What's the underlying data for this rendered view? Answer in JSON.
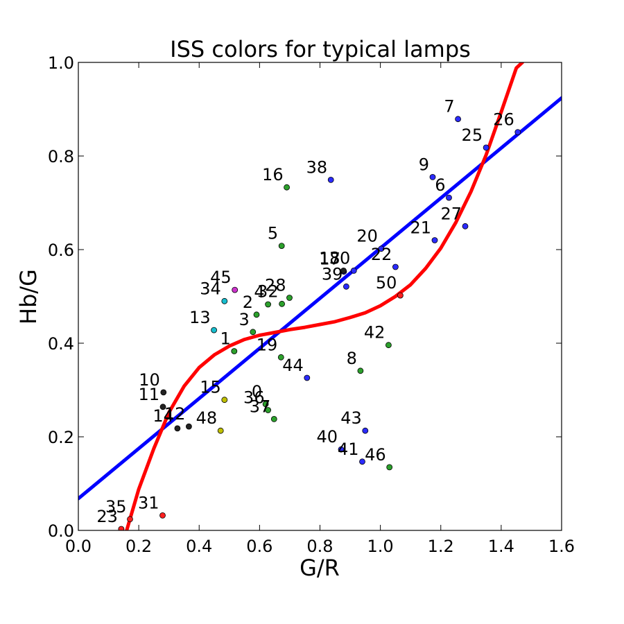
{
  "chart_data": {
    "type": "scatter",
    "title": "ISS colors for typical lamps",
    "xlabel": "G/R",
    "ylabel": "Hb/G",
    "xlim": [
      0.0,
      1.6
    ],
    "ylim": [
      0.0,
      1.0
    ],
    "x_ticks": [
      "0.0",
      "0.2",
      "0.4",
      "0.6",
      "0.8",
      "1.0",
      "1.2",
      "1.4",
      "1.6"
    ],
    "y_ticks": [
      "0.0",
      "0.2",
      "0.4",
      "0.6",
      "0.8",
      "1.0"
    ],
    "grid": false,
    "legend": "none",
    "points": [
      {
        "label": "0",
        "x": 0.62,
        "y": 0.27,
        "color": "#2ca02c"
      },
      {
        "label": "1",
        "x": 0.516,
        "y": 0.383,
        "color": "#2ca02c"
      },
      {
        "label": "2",
        "x": 0.59,
        "y": 0.461,
        "color": "#2ca02c"
      },
      {
        "label": "3",
        "x": 0.578,
        "y": 0.424,
        "color": "#2ca02c"
      },
      {
        "label": "4",
        "x": 0.628,
        "y": 0.483,
        "color": "#2ca02c"
      },
      {
        "label": "5",
        "x": 0.673,
        "y": 0.608,
        "color": "#2ca02c"
      },
      {
        "label": "6",
        "x": 1.227,
        "y": 0.711,
        "color": "#2b2bff"
      },
      {
        "label": "7",
        "x": 1.257,
        "y": 0.879,
        "color": "#2b2bff"
      },
      {
        "label": "8",
        "x": 0.934,
        "y": 0.341,
        "color": "#2ca02c"
      },
      {
        "label": "9",
        "x": 1.173,
        "y": 0.755,
        "color": "#2b2bff"
      },
      {
        "label": "10",
        "x": 0.282,
        "y": 0.295,
        "color": "#222222"
      },
      {
        "label": "11",
        "x": 0.28,
        "y": 0.264,
        "color": "#222222"
      },
      {
        "label": "12",
        "x": 0.366,
        "y": 0.222,
        "color": "#222222"
      },
      {
        "label": "13",
        "x": 0.449,
        "y": 0.428,
        "color": "#17becf"
      },
      {
        "label": "14",
        "x": 0.328,
        "y": 0.218,
        "color": "#222222"
      },
      {
        "label": "15",
        "x": 0.484,
        "y": 0.279,
        "color": "#bfbf00"
      },
      {
        "label": "16",
        "x": 0.69,
        "y": 0.733,
        "color": "#2ca02c"
      },
      {
        "label": "17",
        "x": 0.879,
        "y": 0.553,
        "color": "#2b2bff"
      },
      {
        "label": "18",
        "x": 0.878,
        "y": 0.555,
        "color": "#222222"
      },
      {
        "label": "19",
        "x": 0.671,
        "y": 0.37,
        "color": "#2ca02c"
      },
      {
        "label": "20",
        "x": 1.003,
        "y": 0.602,
        "color": "#2b2bff"
      },
      {
        "label": "21",
        "x": 1.18,
        "y": 0.62,
        "color": "#2b2bff"
      },
      {
        "label": "22",
        "x": 1.05,
        "y": 0.563,
        "color": "#2b2bff"
      },
      {
        "label": "23",
        "x": 0.142,
        "y": 0.003,
        "color": "#ff2020"
      },
      {
        "label": "25",
        "x": 1.35,
        "y": 0.818,
        "color": "#2b2bff"
      },
      {
        "label": "26",
        "x": 1.455,
        "y": 0.851,
        "color": "#2b2bff"
      },
      {
        "label": "27",
        "x": 1.281,
        "y": 0.65,
        "color": "#2b2bff"
      },
      {
        "label": "28",
        "x": 0.699,
        "y": 0.497,
        "color": "#2ca02c"
      },
      {
        "label": "30",
        "x": 0.912,
        "y": 0.555,
        "color": "#2b2bff"
      },
      {
        "label": "31",
        "x": 0.279,
        "y": 0.032,
        "color": "#ff2020"
      },
      {
        "label": "32",
        "x": 0.674,
        "y": 0.484,
        "color": "#2ca02c"
      },
      {
        "label": "34",
        "x": 0.484,
        "y": 0.49,
        "color": "#17becf"
      },
      {
        "label": "35",
        "x": 0.171,
        "y": 0.024,
        "color": "#ff2020"
      },
      {
        "label": "36",
        "x": 0.628,
        "y": 0.257,
        "color": "#2ca02c"
      },
      {
        "label": "37",
        "x": 0.648,
        "y": 0.238,
        "color": "#2ca02c"
      },
      {
        "label": "38",
        "x": 0.836,
        "y": 0.749,
        "color": "#2b2bff"
      },
      {
        "label": "39",
        "x": 0.887,
        "y": 0.521,
        "color": "#2b2bff"
      },
      {
        "label": "40",
        "x": 0.87,
        "y": 0.173,
        "color": "#2b2bff"
      },
      {
        "label": "41",
        "x": 0.94,
        "y": 0.147,
        "color": "#2b2bff"
      },
      {
        "label": "42",
        "x": 1.027,
        "y": 0.396,
        "color": "#2ca02c"
      },
      {
        "label": "43",
        "x": 0.95,
        "y": 0.213,
        "color": "#2b2bff"
      },
      {
        "label": "44",
        "x": 0.757,
        "y": 0.326,
        "color": "#2b2bff"
      },
      {
        "label": "45",
        "x": 0.518,
        "y": 0.514,
        "color": "#cc33cc"
      },
      {
        "label": "46",
        "x": 1.03,
        "y": 0.135,
        "color": "#2ca02c"
      },
      {
        "label": "48",
        "x": 0.471,
        "y": 0.213,
        "color": "#bfbf00"
      },
      {
        "label": "50",
        "x": 1.066,
        "y": 0.502,
        "color": "#ff2020"
      }
    ],
    "fit_lines": [
      {
        "type": "linear",
        "color": "#0000ff",
        "x": [
          0.0,
          1.6
        ],
        "y": [
          0.068,
          0.924
        ]
      },
      {
        "type": "cubic",
        "color": "#ff0000",
        "x": [
          0.16,
          0.2,
          0.25,
          0.3,
          0.35,
          0.4,
          0.45,
          0.5,
          0.55,
          0.6,
          0.65,
          0.7,
          0.75,
          0.8,
          0.85,
          0.9,
          0.95,
          1.0,
          1.05,
          1.1,
          1.15,
          1.2,
          1.25,
          1.3,
          1.35,
          1.4,
          1.45,
          1.47
        ],
        "y": [
          0.0,
          0.088,
          0.175,
          0.252,
          0.308,
          0.348,
          0.375,
          0.394,
          0.408,
          0.417,
          0.423,
          0.429,
          0.434,
          0.44,
          0.446,
          0.455,
          0.465,
          0.48,
          0.5,
          0.525,
          0.56,
          0.603,
          0.658,
          0.724,
          0.802,
          0.894,
          0.988,
          1.0
        ]
      }
    ]
  }
}
